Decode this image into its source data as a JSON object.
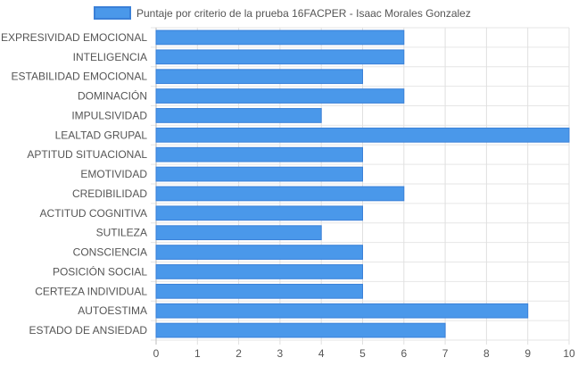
{
  "chart_data": {
    "type": "bar",
    "orientation": "horizontal",
    "legend_position": "top",
    "grid": true,
    "xlim": [
      0,
      10
    ],
    "x_ticks": [
      "0",
      "1",
      "2",
      "3",
      "4",
      "5",
      "6",
      "7",
      "8",
      "9",
      "10"
    ],
    "categories": [
      "EXPRESIVIDAD EMOCIONAL",
      "INTELIGENCIA",
      "ESTABILIDAD EMOCIONAL",
      "DOMINACIÓN",
      "IMPULSIVIDAD",
      "LEALTAD GRUPAL",
      "APTITUD SITUACIONAL",
      "EMOTIVIDAD",
      "CREDIBILIDAD",
      "ACTITUD COGNITIVA",
      "SUTILEZA",
      "CONSCIENCIA",
      "POSICIÓN SOCIAL",
      "CERTEZA INDIVIDUAL",
      "AUTOESTIMA",
      "ESTADO DE ANSIEDAD"
    ],
    "series": [
      {
        "name": "Puntaje por criterio de la prueba 16FACPER - Isaac Morales Gonzalez",
        "color": "#4a98ea",
        "border_color": "#3a80d8",
        "values": [
          6,
          6,
          5,
          6,
          4,
          10,
          5,
          5,
          6,
          5,
          4,
          5,
          5,
          5,
          9,
          7
        ]
      }
    ]
  }
}
